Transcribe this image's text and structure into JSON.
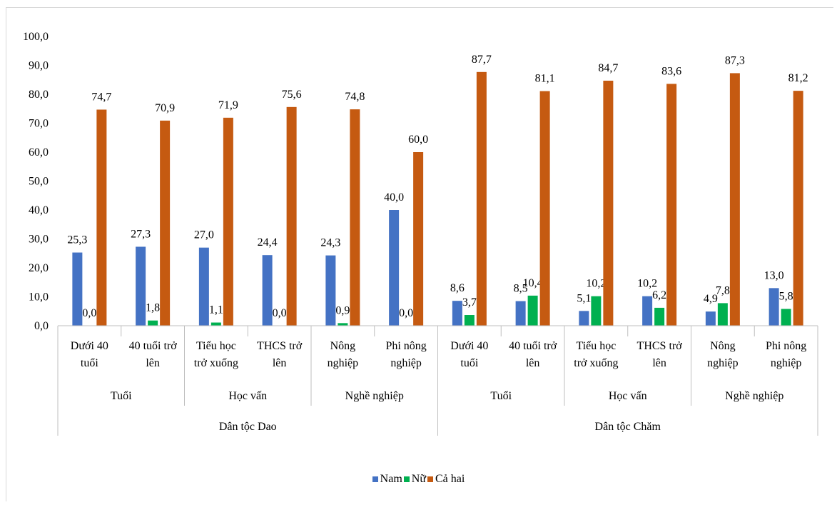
{
  "chart_data": {
    "type": "bar",
    "ylim": [
      0,
      100
    ],
    "yticks": [
      "0,0",
      "10,0",
      "20,0",
      "30,0",
      "40,0",
      "50,0",
      "60,0",
      "70,0",
      "80,0",
      "90,0",
      "100,0"
    ],
    "series": [
      {
        "name": "Nam",
        "color": "#4472C4",
        "values": [
          25.3,
          27.3,
          27.0,
          24.4,
          24.3,
          40.0,
          8.6,
          8.5,
          5.1,
          10.2,
          4.9,
          13.0
        ],
        "labels": [
          "25,3",
          "27,3",
          "27,0",
          "24,4",
          "24,3",
          "40,0",
          "8,6",
          "8,5",
          "5,1",
          "10,2",
          "4,9",
          "13,0"
        ]
      },
      {
        "name": "Nữ",
        "color": "#00B050",
        "values": [
          0.0,
          1.8,
          1.1,
          0.0,
          0.9,
          0.0,
          3.7,
          10.4,
          10.2,
          6.2,
          7.8,
          5.8
        ],
        "labels": [
          "0,0",
          "1,8",
          "1,1",
          "0,0",
          "0,9",
          "0,0",
          "3,7",
          "10,4",
          "10,2",
          "6,2",
          "7,8",
          "5,8"
        ]
      },
      {
        "name": "Cả hai",
        "color": "#C55A11",
        "values": [
          74.7,
          70.9,
          71.9,
          75.6,
          74.8,
          60.0,
          87.7,
          81.1,
          84.7,
          83.6,
          87.3,
          81.2
        ],
        "labels": [
          "74,7",
          "70,9",
          "71,9",
          "75,6",
          "74,8",
          "60,0",
          "87,7",
          "81,1",
          "84,7",
          "83,6",
          "87,3",
          "81,2"
        ]
      }
    ],
    "categories": [
      [
        "Dưới 40",
        "tuổi"
      ],
      [
        "40 tuổi trở",
        "lên"
      ],
      [
        "Tiểu học",
        "trở xuống"
      ],
      [
        "THCS trở",
        "lên"
      ],
      [
        "Nông",
        "nghiệp"
      ],
      [
        "Phi nông",
        "nghiệp"
      ],
      [
        "Dưới 40",
        "tuổi"
      ],
      [
        "40 tuổi trở",
        "lên"
      ],
      [
        "Tiểu học",
        "trở xuống"
      ],
      [
        "THCS trở",
        "lên"
      ],
      [
        "Nông",
        "nghiệp"
      ],
      [
        "Phi nông",
        "nghiệp"
      ]
    ],
    "groups": [
      "Tuổi",
      "Học vấn",
      "Nghề nghiệp",
      "Tuổi",
      "Học vấn",
      "Nghề nghiệp"
    ],
    "supergroups": [
      "Dân tộc Dao",
      "Dân tộc Chăm"
    ],
    "legend_position": "bottom",
    "grid": false
  }
}
